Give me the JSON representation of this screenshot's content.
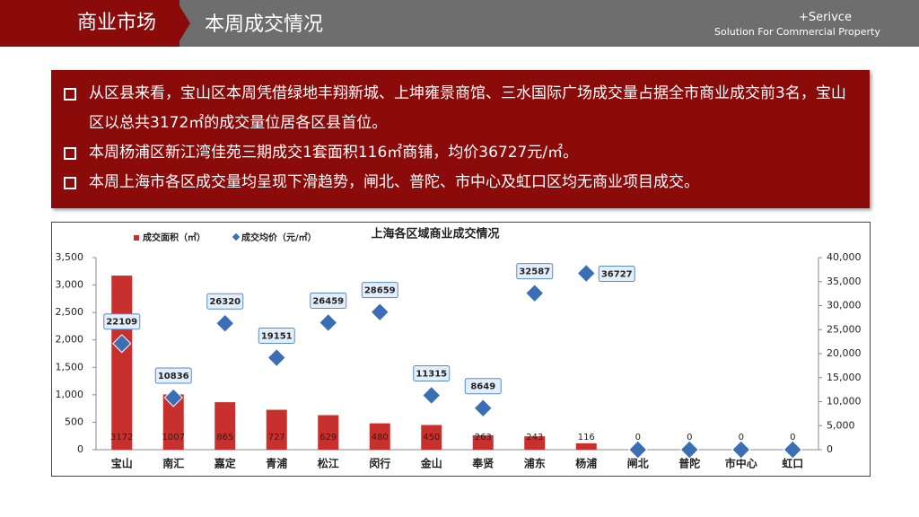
{
  "header": {
    "section": "商业市场",
    "title": "本周成交情况",
    "logo_brand": "+Serivce",
    "logo_tagline": "Solution For Commercial Property"
  },
  "bullets": [
    "从区县来看，宝山区本周凭借绿地丰翔新城、上坤雍景商馆、三水国际广场成交量占据全市商业成交前3名，宝山区以总共3172㎡的成交量位居各区县首位。",
    "本周杨浦区新江湾佳苑三期成交1套面积116㎡商铺，均价36727元/㎡。",
    "本周上海市各区成交量均呈现下滑趋势，闸北、普陀、市中心及虹口区均无商业项目成交。"
  ],
  "chart_data": {
    "type": "bar-line",
    "title": "上海各区域商业成交情况",
    "categories": [
      "宝山",
      "南汇",
      "嘉定",
      "青浦",
      "松江",
      "闵行",
      "金山",
      "奉贤",
      "浦东",
      "杨浦",
      "闸北",
      "普陀",
      "市中心",
      "虹口"
    ],
    "series": [
      {
        "name": "成交面积（㎡）",
        "type": "bar",
        "color": "#c8302e",
        "values": [
          3172,
          1007,
          865,
          727,
          629,
          480,
          450,
          263,
          243,
          116,
          0,
          0,
          0,
          0
        ]
      },
      {
        "name": "成交均价（元/㎡）",
        "type": "scatter",
        "axis": "y2",
        "color": "#3a6fb5",
        "values": [
          22109,
          10836,
          26320,
          19151,
          26459,
          28659,
          11315,
          8649,
          32587,
          36727,
          0,
          0,
          0,
          0
        ],
        "value_labels": [
          "22109",
          "10836",
          "26320",
          "19151",
          "26459",
          "28659",
          "11315",
          "8649",
          "32587",
          "36727",
          null,
          null,
          null,
          null
        ]
      }
    ],
    "ylim": [
      0,
      3500
    ],
    "yticks": [
      0,
      {
        "value": 500,
        "label": "500"
      },
      {
        "value": 1000,
        "label": "1,000"
      },
      {
        "value": 1500,
        "label": "1,500"
      },
      {
        "value": 2000,
        "label": "2,000"
      },
      {
        "value": 2500,
        "label": "2,500"
      },
      {
        "value": 3000,
        "label": "3,000"
      },
      {
        "value": 3500,
        "label": "3,500"
      }
    ],
    "y2lim": [
      0,
      40000
    ],
    "y2ticks": [
      0,
      {
        "value": 5000,
        "label": "5,000"
      },
      {
        "value": 10000,
        "label": "10,000"
      },
      {
        "value": 15000,
        "label": "15,000"
      },
      {
        "value": 20000,
        "label": "20,000"
      },
      {
        "value": 25000,
        "label": "25,000"
      },
      {
        "value": 30000,
        "label": "30,000"
      },
      {
        "value": 35000,
        "label": "35,000"
      },
      {
        "value": 40000,
        "label": "40,000"
      }
    ]
  }
}
